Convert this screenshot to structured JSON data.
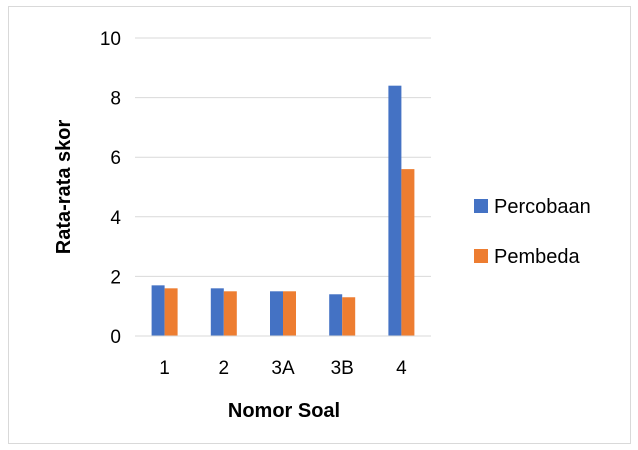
{
  "chart_data": {
    "type": "bar",
    "title": "",
    "xlabel": "Nomor Soal",
    "ylabel": "Rata-rata skor",
    "categories": [
      "1",
      "2",
      "3A",
      "3B",
      "4"
    ],
    "series": [
      {
        "name": "Percobaan",
        "color": "#4472C4",
        "values": [
          1.7,
          1.6,
          1.5,
          1.4,
          8.4
        ]
      },
      {
        "name": "Pembeda",
        "color": "#ED7D31",
        "values": [
          1.6,
          1.5,
          1.5,
          1.3,
          5.6
        ]
      }
    ],
    "ylim": [
      0,
      10
    ],
    "yticks": [
      0,
      2,
      4,
      6,
      8,
      10
    ],
    "grid": true,
    "legend": "right"
  }
}
